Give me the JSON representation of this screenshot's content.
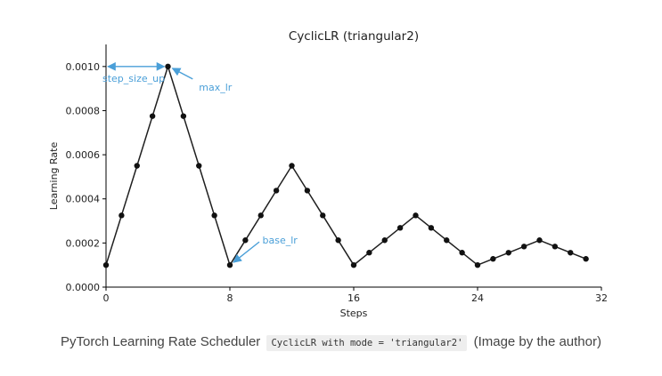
{
  "chart_data": {
    "type": "line",
    "title": "CyclicLR (triangular2)",
    "xlabel": "Steps",
    "ylabel": "Learning Rate",
    "xlim": [
      0,
      32
    ],
    "ylim": [
      0,
      0.0011
    ],
    "xticks": [
      "0",
      "8",
      "16",
      "24",
      "32"
    ],
    "yticks": [
      "0.0000",
      "0.0002",
      "0.0004",
      "0.0006",
      "0.0008",
      "0.0010"
    ],
    "grid": false,
    "series": [
      {
        "x": [
          0,
          1,
          2,
          3,
          4,
          5,
          6,
          7,
          8,
          9,
          10,
          11,
          12,
          13,
          14,
          15,
          16,
          17,
          18,
          19,
          20,
          21,
          22,
          23,
          24,
          25,
          26,
          27,
          28,
          29,
          30,
          31
        ],
        "values": [
          0.0001,
          0.000325,
          0.00055,
          0.000775,
          0.001,
          0.000775,
          0.00055,
          0.000325,
          0.0001,
          0.0002125,
          0.000325,
          0.0004375,
          0.00055,
          0.0004375,
          0.000325,
          0.0002125,
          0.0001,
          0.00015625,
          0.0002125,
          0.00026875,
          0.000325,
          0.00026875,
          0.0002125,
          0.00015625,
          0.0001,
          0.000128,
          0.000156,
          0.000184,
          0.0002125,
          0.000184,
          0.000156,
          0.000128
        ]
      }
    ],
    "annotations": {
      "step_size_up": "step_size_up",
      "max_lr": "max_lr",
      "base_lr": "base_lr"
    },
    "annotation_color": "#4a9fd8"
  },
  "caption": {
    "before": "PyTorch Learning Rate Scheduler",
    "code": "CyclicLR with mode = 'triangular2'",
    "after": "(Image by the author)"
  }
}
